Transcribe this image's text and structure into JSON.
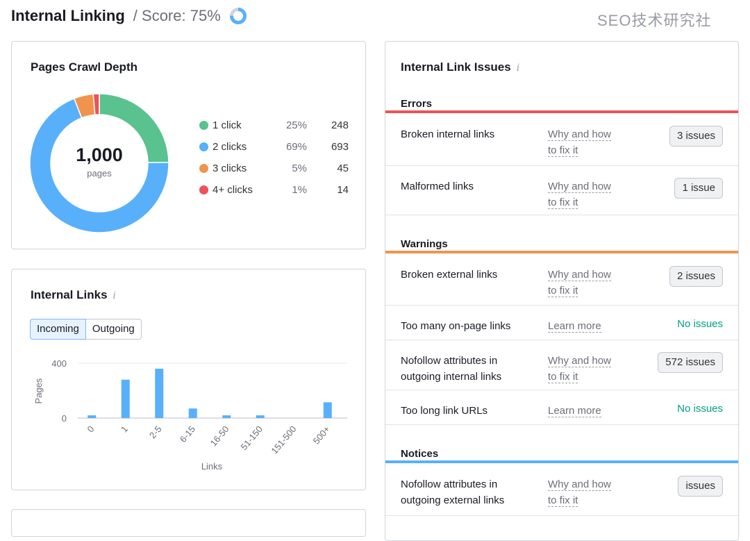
{
  "header": {
    "title": "Internal Linking",
    "score": "/ Score: 75%",
    "score_value": 75
  },
  "crawl_depth": {
    "title": "Pages Crawl Depth",
    "total": "1,000",
    "total_label": "pages",
    "items": [
      {
        "label": "1 click",
        "pct": "25%",
        "count": "248",
        "value": 248,
        "color": "#59c28f"
      },
      {
        "label": "2 clicks",
        "pct": "69%",
        "count": "693",
        "value": 693,
        "color": "#58b0fb"
      },
      {
        "label": "3 clicks",
        "pct": "5%",
        "count": "45",
        "value": 45,
        "color": "#f0944d"
      },
      {
        "label": "4+ clicks",
        "pct": "1%",
        "count": "14",
        "value": 14,
        "color": "#ed5257"
      }
    ]
  },
  "internal_links": {
    "title": "Internal Links",
    "tabs": [
      "Incoming",
      "Outgoing"
    ]
  },
  "chart_data": {
    "type": "bar",
    "categories": [
      "0",
      "1",
      "2-5",
      "6-15",
      "16-50",
      "51-150",
      "151-500",
      "500+"
    ],
    "values": [
      20,
      280,
      360,
      70,
      20,
      20,
      0,
      115
    ],
    "xlabel": "Links",
    "ylabel": "Pages",
    "yticks": [
      "0",
      "400"
    ],
    "ylim": [
      0,
      400
    ],
    "grid": true
  },
  "issues": {
    "title": "Internal Link Issues",
    "sections": [
      {
        "name": "Errors",
        "color": "#ed5257",
        "rows": [
          {
            "name": "Broken internal links",
            "link": [
              "Why and how",
              "to fix it"
            ],
            "badge": "3 issues"
          },
          {
            "name": "Malformed links",
            "link": [
              "Why and how",
              "to fix it"
            ],
            "badge": "1 issue"
          }
        ]
      },
      {
        "name": "Warnings",
        "color": "#f0944d",
        "rows": [
          {
            "name": "Broken external links",
            "link": [
              "Why and how",
              "to fix it"
            ],
            "badge": "2 issues"
          },
          {
            "name": "Too many on-page links",
            "link": [
              "Learn more",
              ""
            ],
            "status": "No issues"
          },
          {
            "name": "Nofollow attributes in outgoing internal links",
            "link": [
              "Why and how",
              "to fix it"
            ],
            "badge": "572 issues"
          },
          {
            "name": "Too long link URLs",
            "link": [
              "Learn more",
              ""
            ],
            "status": "No issues"
          }
        ]
      },
      {
        "name": "Notices",
        "color": "#58b0fb",
        "rows": [
          {
            "name": "Nofollow attributes in outgoing external links",
            "link": [
              "Why and how",
              "to fix it"
            ],
            "badge": "issues"
          }
        ]
      }
    ]
  },
  "watermark": "SEO技术研究社"
}
